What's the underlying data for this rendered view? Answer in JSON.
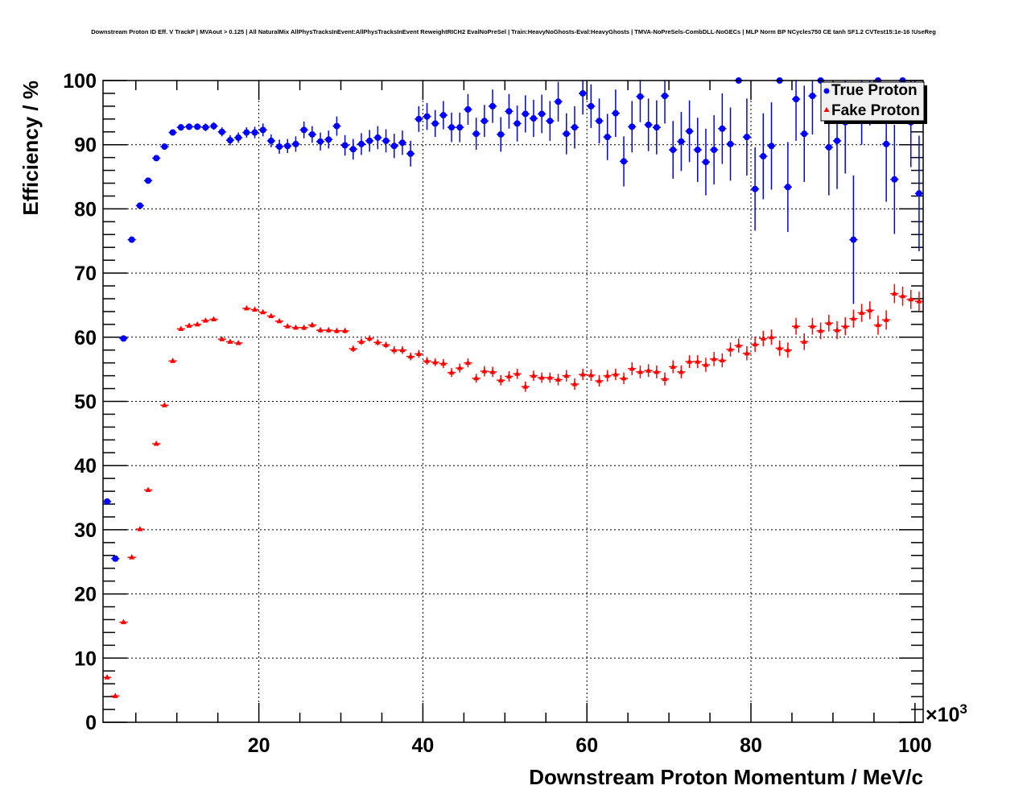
{
  "chart_data": {
    "type": "scatter",
    "title": "Downstream Proton ID Eff. V TrackP | MVAout > 0.125 | All NaturalMix AllPhysTracksInEvent:AllPhysTracksInEvent ReweightRICH2 EvalNoPreSel | Train:HeavyNoGhosts-Eval:HeavyGhosts | TMVA-NoPreSels-CombDLL-NoGECs | MLP Norm BP NCycles750 CE tanh SF1.2 CVTest15:1e-16 !UseReg",
    "xlabel": "Downstream Proton Momentum / MeV/c",
    "ylabel": "Efficiency / %",
    "x_multiplier": "×10",
    "x_multiplier_exp": "3",
    "xlim": [
      1,
      101
    ],
    "ylim": [
      0,
      100
    ],
    "xticks": [
      "20",
      "40",
      "60",
      "80",
      "100"
    ],
    "yticks": [
      "0",
      "10",
      "20",
      "30",
      "40",
      "50",
      "60",
      "70",
      "80",
      "90",
      "100"
    ],
    "grid": true,
    "legend_position": "top-right",
    "bin_width": 1,
    "x_first_bin_center": 1.5,
    "series": [
      {
        "name": "True Proton",
        "color": "#0000ff",
        "marker": "circle",
        "values": [
          34.4,
          25.5,
          59.8,
          75.2,
          80.5,
          84.4,
          87.9,
          89.7,
          91.9,
          92.7,
          92.8,
          92.8,
          92.7,
          92.9,
          92.0,
          90.7,
          91.1,
          91.9,
          91.9,
          92.3,
          90.6,
          89.7,
          89.8,
          90.1,
          92.3,
          91.6,
          90.5,
          90.8,
          92.9,
          89.9,
          89.3,
          90.1,
          90.6,
          91.1,
          90.6,
          89.8,
          90.3,
          88.6,
          94.0,
          94.4,
          93.3,
          94.6,
          92.7,
          92.7,
          95.5,
          91.7,
          93.7,
          96.0,
          91.6,
          95.2,
          93.3,
          94.8,
          94.1,
          94.8,
          93.7,
          96.7,
          91.7,
          92.7,
          98.0,
          96.0,
          93.7,
          91.2,
          94.9,
          87.4,
          92.8,
          97.5,
          93.1,
          92.7,
          97.6,
          89.2,
          90.5,
          92.1,
          89.2,
          87.3,
          89.2,
          92.5,
          90.1,
          100,
          91.2,
          83.1,
          88.2,
          89.8,
          100,
          83.4,
          97.1,
          91.7,
          97.6,
          100,
          89.6,
          90.6,
          93.5,
          75.2,
          96,
          98,
          100,
          90.1,
          84.6,
          100,
          93.5,
          82.4
        ],
        "errors": [
          0.4,
          0.4,
          0.4,
          0.4,
          0.4,
          0.4,
          0.4,
          0.4,
          0.4,
          0.5,
          0.5,
          0.5,
          0.6,
          0.6,
          0.7,
          0.8,
          0.8,
          0.8,
          0.9,
          1.0,
          1.0,
          1.1,
          1.1,
          1.2,
          1.3,
          1.3,
          1.4,
          1.4,
          1.5,
          1.6,
          1.6,
          1.7,
          1.7,
          1.8,
          1.8,
          1.9,
          1.9,
          2.0,
          2.0,
          2.1,
          2.1,
          2.2,
          2.3,
          2.3,
          2.4,
          2.5,
          2.5,
          2.6,
          2.7,
          2.7,
          2.8,
          2.9,
          2.9,
          3.0,
          3.1,
          3.1,
          3.2,
          3.3,
          3.3,
          3.4,
          3.5,
          3.6,
          3.7,
          3.9,
          4.0,
          4.0,
          4.1,
          4.2,
          4.3,
          4.5,
          4.6,
          4.8,
          5.0,
          5.2,
          5.4,
          5.5,
          5.7,
          0,
          6.0,
          6.5,
          6.7,
          6.8,
          0,
          7.0,
          6.5,
          7.5,
          6.0,
          0,
          7.5,
          7.5,
          8.0,
          10.0,
          6,
          5,
          0,
          9.0,
          8.5,
          0,
          7.0,
          9.0
        ]
      },
      {
        "name": "Fake Proton",
        "color": "#ff0000",
        "marker": "triangle",
        "values": [
          7.0,
          4.1,
          15.6,
          25.7,
          30.1,
          36.2,
          43.4,
          49.4,
          56.3,
          61.3,
          61.8,
          62.0,
          62.6,
          62.8,
          59.7,
          59.3,
          59.1,
          64.5,
          64.3,
          63.9,
          63.3,
          62.5,
          61.7,
          61.5,
          61.5,
          61.9,
          61.1,
          61.1,
          61.0,
          61.0,
          58.2,
          59.3,
          59.8,
          59.2,
          58.8,
          58.0,
          58.0,
          57.0,
          57.4,
          56.3,
          56.1,
          55.9,
          54.5,
          55.2,
          56.0,
          53.6,
          54.7,
          54.6,
          53.3,
          53.9,
          54.3,
          52.3,
          54.0,
          53.7,
          53.7,
          53.4,
          54.0,
          52.7,
          54.2,
          54.1,
          53.2,
          54.0,
          54.2,
          53.6,
          55.1,
          54.6,
          54.8,
          54.6,
          53.5,
          55.4,
          54.6,
          56.2,
          56.2,
          55.7,
          56.6,
          56.4,
          58.1,
          58.7,
          57.5,
          58.9,
          59.8,
          60.0,
          58.3,
          58.0,
          61.7,
          59.3,
          61.7,
          61.0,
          62.2,
          61.1,
          61.7,
          62.9,
          63.8,
          64.2,
          61.9,
          62.7,
          66.8,
          66.4,
          65.9,
          65.6
        ],
        "errors": [
          0.2,
          0.2,
          0.2,
          0.2,
          0.2,
          0.2,
          0.2,
          0.2,
          0.2,
          0.2,
          0.2,
          0.2,
          0.2,
          0.3,
          0.3,
          0.3,
          0.3,
          0.3,
          0.3,
          0.3,
          0.3,
          0.3,
          0.3,
          0.3,
          0.4,
          0.4,
          0.4,
          0.4,
          0.4,
          0.4,
          0.5,
          0.5,
          0.5,
          0.5,
          0.5,
          0.6,
          0.6,
          0.6,
          0.6,
          0.6,
          0.6,
          0.7,
          0.7,
          0.7,
          0.7,
          0.7,
          0.8,
          0.8,
          0.8,
          0.8,
          0.8,
          0.8,
          0.8,
          0.8,
          0.8,
          0.9,
          0.9,
          0.9,
          0.9,
          0.9,
          0.9,
          0.9,
          0.9,
          0.9,
          1.0,
          1.0,
          1.0,
          1.0,
          1.0,
          1.0,
          1.0,
          1.0,
          1.0,
          1.1,
          1.1,
          1.1,
          1.1,
          1.1,
          1.1,
          1.2,
          1.2,
          1.2,
          1.2,
          1.2,
          1.3,
          1.3,
          1.3,
          1.3,
          1.3,
          1.4,
          1.4,
          1.4,
          1.4,
          1.4,
          1.5,
          1.5,
          1.5,
          1.5,
          1.5,
          1.5
        ]
      }
    ]
  }
}
